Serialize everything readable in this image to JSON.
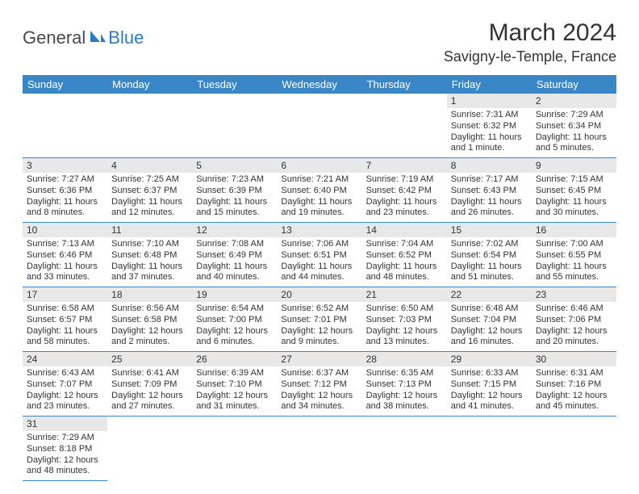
{
  "logo": {
    "part1": "General",
    "part2": "Blue"
  },
  "title": "March 2024",
  "location": "Savigny-le-Temple, France",
  "colors": {
    "header_bg": "#3a87c7",
    "header_text": "#ffffff",
    "daynum_bg": "#e8e8e8",
    "border": "#3a87c7",
    "logo_gray": "#4a4a4a",
    "logo_blue": "#2d7bbf"
  },
  "day_labels": [
    "Sunday",
    "Monday",
    "Tuesday",
    "Wednesday",
    "Thursday",
    "Friday",
    "Saturday"
  ],
  "weeks": [
    [
      null,
      null,
      null,
      null,
      null,
      {
        "n": "1",
        "sr": "Sunrise: 7:31 AM",
        "ss": "Sunset: 6:32 PM",
        "dl": "Daylight: 11 hours and 1 minute."
      },
      {
        "n": "2",
        "sr": "Sunrise: 7:29 AM",
        "ss": "Sunset: 6:34 PM",
        "dl": "Daylight: 11 hours and 5 minutes."
      }
    ],
    [
      {
        "n": "3",
        "sr": "Sunrise: 7:27 AM",
        "ss": "Sunset: 6:36 PM",
        "dl": "Daylight: 11 hours and 8 minutes."
      },
      {
        "n": "4",
        "sr": "Sunrise: 7:25 AM",
        "ss": "Sunset: 6:37 PM",
        "dl": "Daylight: 11 hours and 12 minutes."
      },
      {
        "n": "5",
        "sr": "Sunrise: 7:23 AM",
        "ss": "Sunset: 6:39 PM",
        "dl": "Daylight: 11 hours and 15 minutes."
      },
      {
        "n": "6",
        "sr": "Sunrise: 7:21 AM",
        "ss": "Sunset: 6:40 PM",
        "dl": "Daylight: 11 hours and 19 minutes."
      },
      {
        "n": "7",
        "sr": "Sunrise: 7:19 AM",
        "ss": "Sunset: 6:42 PM",
        "dl": "Daylight: 11 hours and 23 minutes."
      },
      {
        "n": "8",
        "sr": "Sunrise: 7:17 AM",
        "ss": "Sunset: 6:43 PM",
        "dl": "Daylight: 11 hours and 26 minutes."
      },
      {
        "n": "9",
        "sr": "Sunrise: 7:15 AM",
        "ss": "Sunset: 6:45 PM",
        "dl": "Daylight: 11 hours and 30 minutes."
      }
    ],
    [
      {
        "n": "10",
        "sr": "Sunrise: 7:13 AM",
        "ss": "Sunset: 6:46 PM",
        "dl": "Daylight: 11 hours and 33 minutes."
      },
      {
        "n": "11",
        "sr": "Sunrise: 7:10 AM",
        "ss": "Sunset: 6:48 PM",
        "dl": "Daylight: 11 hours and 37 minutes."
      },
      {
        "n": "12",
        "sr": "Sunrise: 7:08 AM",
        "ss": "Sunset: 6:49 PM",
        "dl": "Daylight: 11 hours and 40 minutes."
      },
      {
        "n": "13",
        "sr": "Sunrise: 7:06 AM",
        "ss": "Sunset: 6:51 PM",
        "dl": "Daylight: 11 hours and 44 minutes."
      },
      {
        "n": "14",
        "sr": "Sunrise: 7:04 AM",
        "ss": "Sunset: 6:52 PM",
        "dl": "Daylight: 11 hours and 48 minutes."
      },
      {
        "n": "15",
        "sr": "Sunrise: 7:02 AM",
        "ss": "Sunset: 6:54 PM",
        "dl": "Daylight: 11 hours and 51 minutes."
      },
      {
        "n": "16",
        "sr": "Sunrise: 7:00 AM",
        "ss": "Sunset: 6:55 PM",
        "dl": "Daylight: 11 hours and 55 minutes."
      }
    ],
    [
      {
        "n": "17",
        "sr": "Sunrise: 6:58 AM",
        "ss": "Sunset: 6:57 PM",
        "dl": "Daylight: 11 hours and 58 minutes."
      },
      {
        "n": "18",
        "sr": "Sunrise: 6:56 AM",
        "ss": "Sunset: 6:58 PM",
        "dl": "Daylight: 12 hours and 2 minutes."
      },
      {
        "n": "19",
        "sr": "Sunrise: 6:54 AM",
        "ss": "Sunset: 7:00 PM",
        "dl": "Daylight: 12 hours and 6 minutes."
      },
      {
        "n": "20",
        "sr": "Sunrise: 6:52 AM",
        "ss": "Sunset: 7:01 PM",
        "dl": "Daylight: 12 hours and 9 minutes."
      },
      {
        "n": "21",
        "sr": "Sunrise: 6:50 AM",
        "ss": "Sunset: 7:03 PM",
        "dl": "Daylight: 12 hours and 13 minutes."
      },
      {
        "n": "22",
        "sr": "Sunrise: 6:48 AM",
        "ss": "Sunset: 7:04 PM",
        "dl": "Daylight: 12 hours and 16 minutes."
      },
      {
        "n": "23",
        "sr": "Sunrise: 6:46 AM",
        "ss": "Sunset: 7:06 PM",
        "dl": "Daylight: 12 hours and 20 minutes."
      }
    ],
    [
      {
        "n": "24",
        "sr": "Sunrise: 6:43 AM",
        "ss": "Sunset: 7:07 PM",
        "dl": "Daylight: 12 hours and 23 minutes."
      },
      {
        "n": "25",
        "sr": "Sunrise: 6:41 AM",
        "ss": "Sunset: 7:09 PM",
        "dl": "Daylight: 12 hours and 27 minutes."
      },
      {
        "n": "26",
        "sr": "Sunrise: 6:39 AM",
        "ss": "Sunset: 7:10 PM",
        "dl": "Daylight: 12 hours and 31 minutes."
      },
      {
        "n": "27",
        "sr": "Sunrise: 6:37 AM",
        "ss": "Sunset: 7:12 PM",
        "dl": "Daylight: 12 hours and 34 minutes."
      },
      {
        "n": "28",
        "sr": "Sunrise: 6:35 AM",
        "ss": "Sunset: 7:13 PM",
        "dl": "Daylight: 12 hours and 38 minutes."
      },
      {
        "n": "29",
        "sr": "Sunrise: 6:33 AM",
        "ss": "Sunset: 7:15 PM",
        "dl": "Daylight: 12 hours and 41 minutes."
      },
      {
        "n": "30",
        "sr": "Sunrise: 6:31 AM",
        "ss": "Sunset: 7:16 PM",
        "dl": "Daylight: 12 hours and 45 minutes."
      }
    ],
    [
      {
        "n": "31",
        "sr": "Sunrise: 7:29 AM",
        "ss": "Sunset: 8:18 PM",
        "dl": "Daylight: 12 hours and 48 minutes."
      },
      null,
      null,
      null,
      null,
      null,
      null
    ]
  ]
}
